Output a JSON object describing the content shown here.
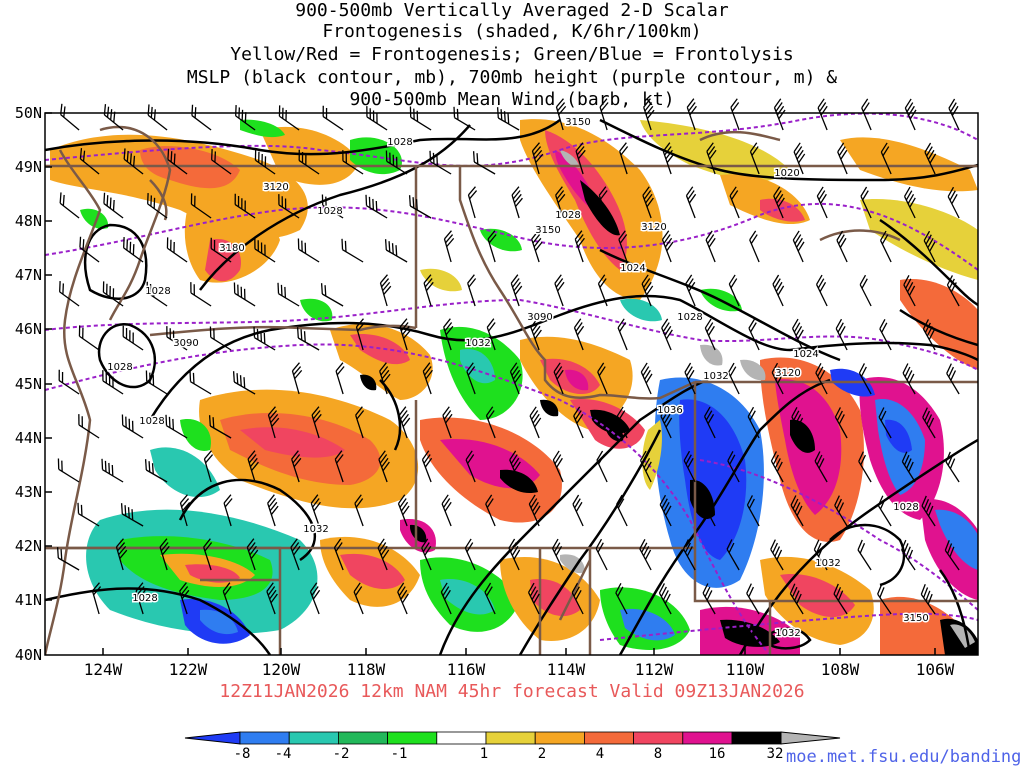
{
  "title": {
    "line1": "900-500mb Vertically Averaged 2-D Scalar",
    "line2": "Frontogenesis (shaded, K/6hr/100km)",
    "line3": "Yellow/Red = Frontogenesis;  Green/Blue = Frontolysis",
    "line4": "MSLP (black contour, mb), 700mb height (purple contour, m) &",
    "line5": "900-500mb Mean Wind (barb, kt)"
  },
  "lat_labels": [
    "50N",
    "49N",
    "48N",
    "47N",
    "46N",
    "45N",
    "44N",
    "43N",
    "42N",
    "41N",
    "40N"
  ],
  "lon_labels": [
    "124W",
    "122W",
    "120W",
    "118W",
    "116W",
    "114W",
    "112W",
    "110W",
    "108W",
    "106W"
  ],
  "mslp_labels": [
    "1028",
    "1028",
    "1028",
    "1028",
    "1028",
    "1028",
    "1028",
    "1032",
    "1032",
    "1032",
    "1032",
    "1032",
    "1036",
    "1028",
    "1024",
    "1024",
    "1020",
    "1028"
  ],
  "height_labels": [
    "3120",
    "3150",
    "3180",
    "3090",
    "3120",
    "3150",
    "3090",
    "3120",
    "3150"
  ],
  "footer": "12Z11JAN2026 12km NAM 45hr forecast Valid 09Z13JAN2026",
  "colorbar": {
    "labels": [
      "-8",
      "-4",
      "-2",
      "-1",
      "1",
      "2",
      "4",
      "8",
      "16",
      "32"
    ],
    "colors": [
      "#1f3bf5",
      "#2f7df0",
      "#29c8b0",
      "#22b85a",
      "#1ee01e",
      "#ffffff",
      "#e6d13a",
      "#f5a623",
      "#f46a3a",
      "#f04560",
      "#e0128f",
      "#000000",
      "#b4b4b4"
    ]
  },
  "field_colors": {
    "white": "#ffffff",
    "yellow": "#e6d13a",
    "orange": "#f5a623",
    "red": "#f46a3a",
    "pinkred": "#f04560",
    "magenta": "#e0128f",
    "black": "#000000",
    "gray": "#b4b4b4",
    "green": "#1ee01e",
    "teal": "#29c8b0",
    "lightblue": "#2f7df0",
    "blue": "#1f3bf5"
  },
  "source": "moe.met.fsu.edu/banding"
}
